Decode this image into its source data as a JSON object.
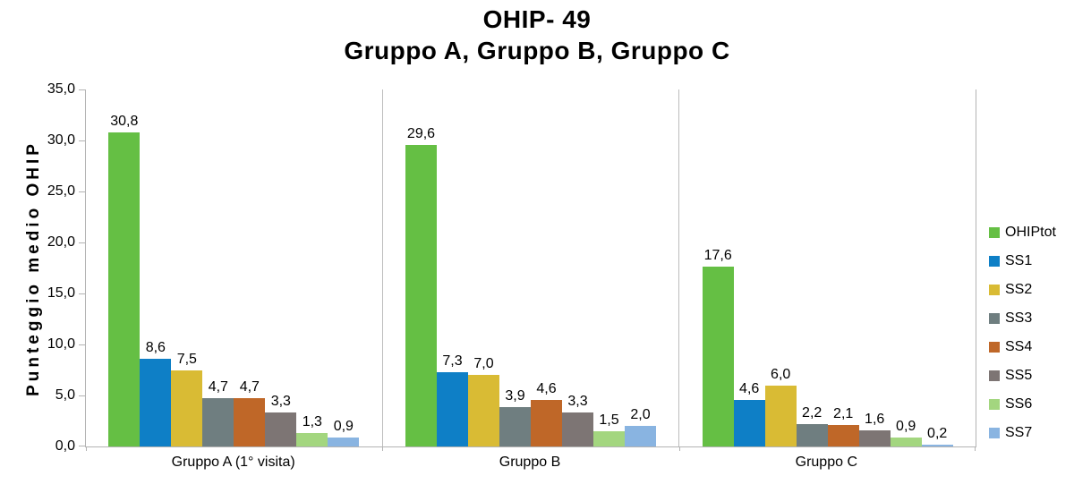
{
  "chart_data": {
    "type": "bar",
    "title": "OHIP- 49",
    "subtitle": "Gruppo A, Gruppo B, Gruppo C",
    "ylabel": "Punteggio medio OHIP",
    "xlabel": "",
    "ylim": [
      0,
      35
    ],
    "ytick_step": 5,
    "ytick_labels_top_to_bottom": [
      "35,0",
      "30,0",
      "25,0",
      "20,0",
      "15,0",
      "10,0",
      "5,0",
      "0,0"
    ],
    "grid": "vertical-category-separators-only",
    "legend_position": "right",
    "axis_color": "#b3b3b3",
    "categories": [
      "Gruppo A (1° visita)",
      "Gruppo B",
      "Gruppo C"
    ],
    "series": [
      {
        "name": "OHIPtot",
        "color": "#65bf44",
        "values": [
          30.8,
          29.6,
          17.6
        ],
        "labels": [
          "30,8",
          "29,6",
          "17,6"
        ]
      },
      {
        "name": "SS1",
        "color": "#0e7fc6",
        "values": [
          8.6,
          7.3,
          4.6
        ],
        "labels": [
          "8,6",
          "7,3",
          "4,6"
        ]
      },
      {
        "name": "SS2",
        "color": "#d9bb34",
        "values": [
          7.5,
          7.0,
          6.0
        ],
        "labels": [
          "7,5",
          "7,0",
          "6,0"
        ]
      },
      {
        "name": "SS3",
        "color": "#6f7e80",
        "values": [
          4.7,
          3.9,
          2.2
        ],
        "labels": [
          "4,7",
          "3,9",
          "2,2"
        ]
      },
      {
        "name": "SS4",
        "color": "#bf6728",
        "values": [
          4.7,
          4.6,
          2.1
        ],
        "labels": [
          "4,7",
          "4,6",
          "2,1"
        ]
      },
      {
        "name": "SS5",
        "color": "#7d7574",
        "values": [
          3.3,
          3.3,
          1.6
        ],
        "labels": [
          "3,3",
          "3,3",
          "1,6"
        ]
      },
      {
        "name": "SS6",
        "color": "#a3d67f",
        "values": [
          1.3,
          1.5,
          0.9
        ],
        "labels": [
          "1,3",
          "1,5",
          "0,9"
        ]
      },
      {
        "name": "SS7",
        "color": "#89b4e1",
        "values": [
          0.9,
          2.0,
          0.2
        ],
        "labels": [
          "0,9",
          "2,0",
          "0,2"
        ]
      }
    ]
  }
}
